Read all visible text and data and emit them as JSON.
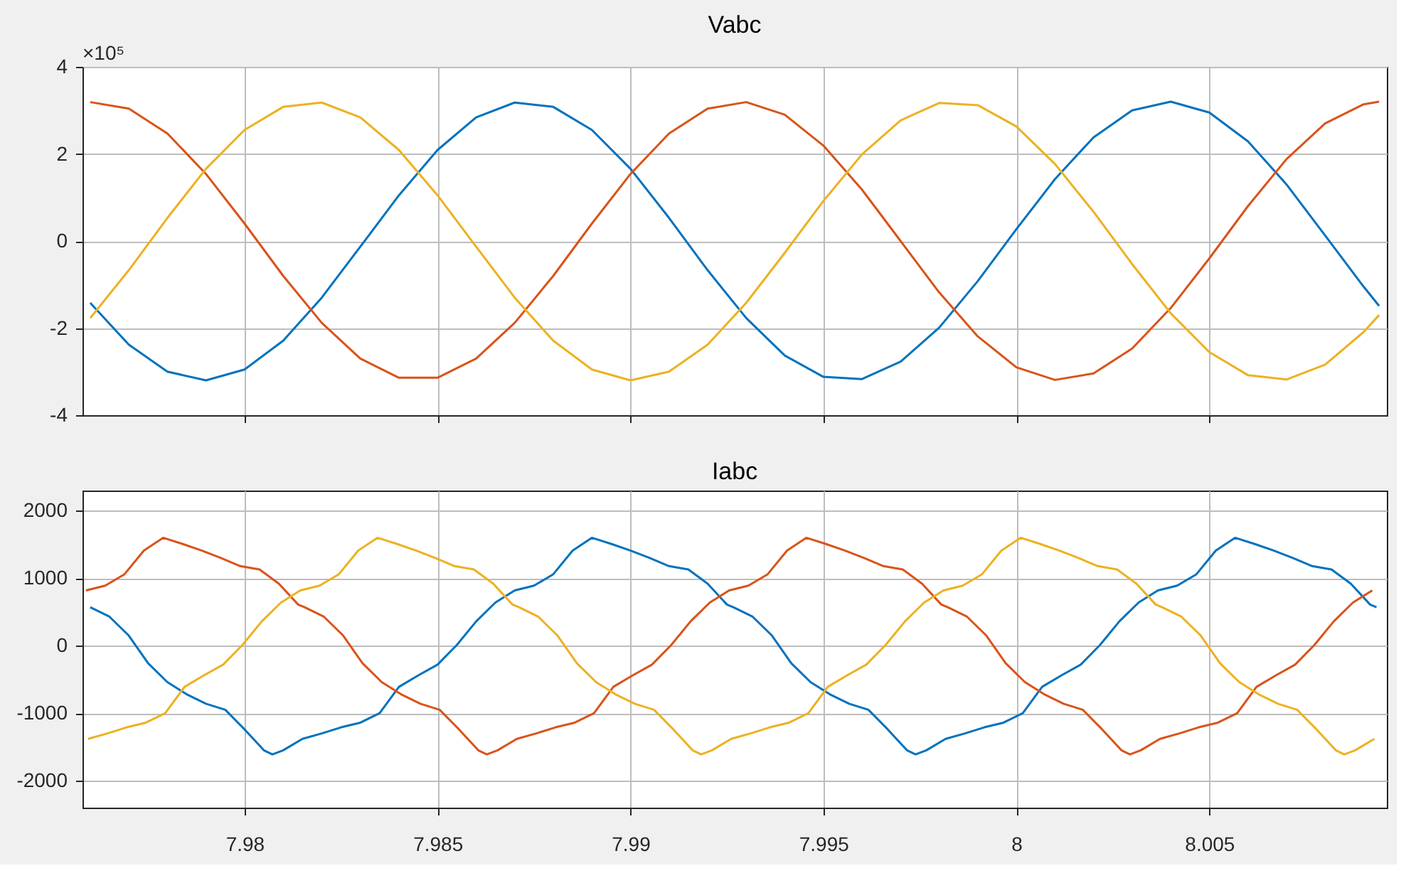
{
  "chart_data": [
    {
      "type": "line",
      "title": "Vabc",
      "annotations": [
        "×10⁵"
      ],
      "grid": true,
      "legend": false,
      "tick_labels": "y",
      "xlim": [
        7.9758,
        8.0096
      ],
      "xticks": [
        7.98,
        7.985,
        7.99,
        7.995,
        8,
        8.005
      ],
      "ylim": [
        -4,
        4
      ],
      "yticks": [
        -4,
        -2,
        0,
        2,
        4
      ],
      "x": [
        7.976,
        7.977,
        7.978,
        7.979,
        7.98,
        7.981,
        7.982,
        7.983,
        7.984,
        7.985,
        7.986,
        7.987,
        7.988,
        7.989,
        7.99,
        7.991,
        7.992,
        7.993,
        7.994,
        7.995,
        7.996,
        7.997,
        7.998,
        7.999,
        8.0,
        8.001,
        8.002,
        8.003,
        8.004,
        8.005,
        8.006,
        8.007,
        8.008,
        8.009,
        8.0094
      ],
      "series": [
        {
          "color": "#0072bd",
          "values": [
            -1.42,
            -2.38,
            -3.0,
            -3.2,
            -2.95,
            -2.29,
            -1.3,
            -0.13,
            1.05,
            2.09,
            2.84,
            3.18,
            3.08,
            2.55,
            1.66,
            0.53,
            -0.67,
            -1.77,
            -2.63,
            -3.12,
            -3.17,
            -2.77,
            -1.99,
            -0.92,
            0.27,
            1.42,
            2.38,
            3.0,
            3.2,
            2.95,
            2.29,
            1.3,
            0.13,
            -1.05,
            -1.49
          ]
        },
        {
          "color": "#d95319",
          "values": [
            3.19,
            3.04,
            2.47,
            1.54,
            0.4,
            -0.8,
            -1.88,
            -2.7,
            -3.14,
            -3.14,
            -2.7,
            -1.88,
            -0.8,
            0.4,
            1.54,
            2.47,
            3.04,
            3.19,
            2.9,
            2.19,
            1.18,
            0,
            -1.18,
            -2.19,
            -2.9,
            -3.19,
            -3.04,
            -2.47,
            -1.54,
            -0.4,
            0.8,
            1.88,
            2.7,
            3.14,
            3.2
          ]
        },
        {
          "color": "#edb120",
          "values": [
            -1.77,
            -0.67,
            0.53,
            1.66,
            2.55,
            3.08,
            3.18,
            2.84,
            2.09,
            1.05,
            -0.13,
            -1.3,
            -2.29,
            -2.95,
            -3.2,
            -3.0,
            -2.38,
            -1.42,
            -0.27,
            0.92,
            1.99,
            2.77,
            3.17,
            3.12,
            2.63,
            1.77,
            0.67,
            -0.53,
            -1.66,
            -2.55,
            -3.08,
            -3.18,
            -2.84,
            -2.09,
            -1.7
          ]
        }
      ]
    },
    {
      "type": "line",
      "title": "Iabc",
      "grid": true,
      "legend": false,
      "xlim": [
        7.9758,
        8.0096
      ],
      "xticks": [
        7.98,
        7.985,
        7.99,
        7.995,
        8,
        8.005
      ],
      "ylim": [
        -2400,
        2300
      ],
      "yticks": [
        -2000,
        -1000,
        0,
        1000,
        2000
      ],
      "series": [
        {
          "color": "#0072bd",
          "x": [
            7.976,
            7.9765,
            7.977,
            7.9775,
            7.978,
            7.9785,
            7.979,
            7.9795,
            7.98,
            7.9805,
            7.98072,
            7.981,
            7.9815,
            7.982,
            7.9825,
            7.983,
            7.9835,
            7.984,
            7.9845,
            7.985,
            7.9855,
            7.986,
            7.9865,
            7.987,
            7.9875,
            7.988,
            7.9885,
            7.989,
            7.9895,
            7.99,
            7.9905,
            7.991,
            7.9915,
            7.992,
            7.9925,
            7.992667,
            7.993167,
            7.993667,
            7.994167,
            7.994667,
            7.995167,
            7.995667,
            7.996167,
            7.996667,
            7.997167,
            7.997387,
            7.997667,
            7.998167,
            7.998667,
            7.999167,
            7.999667,
            8.000167,
            8.000667,
            8.001167,
            8.001667,
            8.002167,
            8.002667,
            8.003167,
            8.003667,
            8.004167,
            8.004667,
            8.005167,
            8.005667,
            8.006167,
            8.006667,
            8.007167,
            8.007667,
            8.008167,
            8.008667,
            8.009167,
            8.009333
          ],
          "values": [
            570,
            430,
            150,
            -260,
            -540,
            -720,
            -860,
            -950,
            -1240,
            -1550,
            -1610,
            -1550,
            -1380,
            -1300,
            -1210,
            -1140,
            -1000,
            -610,
            -440,
            -280,
            10,
            360,
            640,
            820,
            890,
            1060,
            1410,
            1600,
            1510,
            1410,
            1300,
            1180,
            1130,
            920,
            610,
            570,
            430,
            150,
            -260,
            -540,
            -720,
            -860,
            -950,
            -1240,
            -1550,
            -1610,
            -1550,
            -1380,
            -1300,
            -1210,
            -1140,
            -1000,
            -610,
            -440,
            -280,
            10,
            360,
            640,
            820,
            890,
            1060,
            1410,
            1600,
            1510,
            1410,
            1300,
            1180,
            1130,
            920,
            610,
            570
          ]
        },
        {
          "color": "#d95319",
          "x": [
            7.975889,
            7.976389,
            7.976889,
            7.977389,
            7.977889,
            7.978389,
            7.978889,
            7.979389,
            7.979889,
            7.980389,
            7.980889,
            7.981389,
            7.981556,
            7.982056,
            7.982556,
            7.983056,
            7.983556,
            7.984056,
            7.984556,
            7.985056,
            7.985556,
            7.986056,
            7.986276,
            7.986556,
            7.987056,
            7.987556,
            7.988056,
            7.988556,
            7.989056,
            7.989556,
            7.990056,
            7.990556,
            7.991056,
            7.991556,
            7.992056,
            7.992556,
            7.993056,
            7.993556,
            7.994056,
            7.994556,
            7.995056,
            7.995556,
            7.996056,
            7.996556,
            7.997056,
            7.997556,
            7.998056,
            7.998223,
            7.998723,
            7.999223,
            7.999723,
            8.000223,
            8.000723,
            8.001223,
            8.001723,
            8.002223,
            8.002723,
            8.002943,
            8.003223,
            8.003723,
            8.004223,
            8.004723,
            8.005223,
            8.005723,
            8.006223,
            8.006723,
            8.007223,
            8.007723,
            8.008223,
            8.008723,
            8.009223
          ],
          "values": [
            820,
            890,
            1060,
            1410,
            1600,
            1510,
            1410,
            1300,
            1180,
            1130,
            920,
            610,
            570,
            430,
            150,
            -260,
            -540,
            -720,
            -860,
            -950,
            -1240,
            -1550,
            -1610,
            -1550,
            -1380,
            -1300,
            -1210,
            -1140,
            -1000,
            -610,
            -440,
            -280,
            10,
            360,
            640,
            820,
            890,
            1060,
            1410,
            1600,
            1510,
            1410,
            1300,
            1180,
            1130,
            920,
            610,
            570,
            430,
            150,
            -260,
            -540,
            -720,
            -860,
            -950,
            -1240,
            -1550,
            -1610,
            -1550,
            -1380,
            -1300,
            -1210,
            -1140,
            -1000,
            -610,
            -440,
            -280,
            10,
            360,
            640,
            820
          ]
        },
        {
          "color": "#edb120",
          "x": [
            7.975944,
            7.976444,
            7.976944,
            7.977444,
            7.977944,
            7.978444,
            7.978944,
            7.979444,
            7.979944,
            7.980444,
            7.980944,
            7.981444,
            7.981944,
            7.982444,
            7.982944,
            7.983444,
            7.983944,
            7.984444,
            7.984944,
            7.985444,
            7.985944,
            7.986444,
            7.986944,
            7.987111,
            7.987611,
            7.988111,
            7.988611,
            7.989111,
            7.989611,
            7.990111,
            7.990611,
            7.991111,
            7.991611,
            7.991831,
            7.992111,
            7.992611,
            7.993111,
            7.993611,
            7.994111,
            7.994611,
            7.995111,
            7.995611,
            7.996111,
            7.996611,
            7.997111,
            7.997611,
            7.998111,
            7.998611,
            7.999111,
            7.999611,
            8.000111,
            8.000611,
            8.001111,
            8.001611,
            8.002111,
            8.002611,
            8.003111,
            8.003611,
            8.003778,
            8.004278,
            8.004778,
            8.005278,
            8.005778,
            8.006278,
            8.006778,
            8.007278,
            8.007778,
            8.008278,
            8.008498,
            8.008778,
            8.009278
          ],
          "values": [
            -1380,
            -1300,
            -1210,
            -1140,
            -1000,
            -610,
            -440,
            -280,
            10,
            360,
            640,
            820,
            890,
            1060,
            1410,
            1600,
            1510,
            1410,
            1300,
            1180,
            1130,
            920,
            610,
            570,
            430,
            150,
            -260,
            -540,
            -720,
            -860,
            -950,
            -1240,
            -1550,
            -1610,
            -1550,
            -1380,
            -1300,
            -1210,
            -1140,
            -1000,
            -610,
            -440,
            -280,
            10,
            360,
            640,
            820,
            890,
            1060,
            1410,
            1600,
            1510,
            1410,
            1300,
            1180,
            1130,
            920,
            610,
            570,
            430,
            150,
            -260,
            -540,
            -720,
            -860,
            -950,
            -1240,
            -1550,
            -1610,
            -1550,
            -1380
          ]
        }
      ]
    }
  ]
}
